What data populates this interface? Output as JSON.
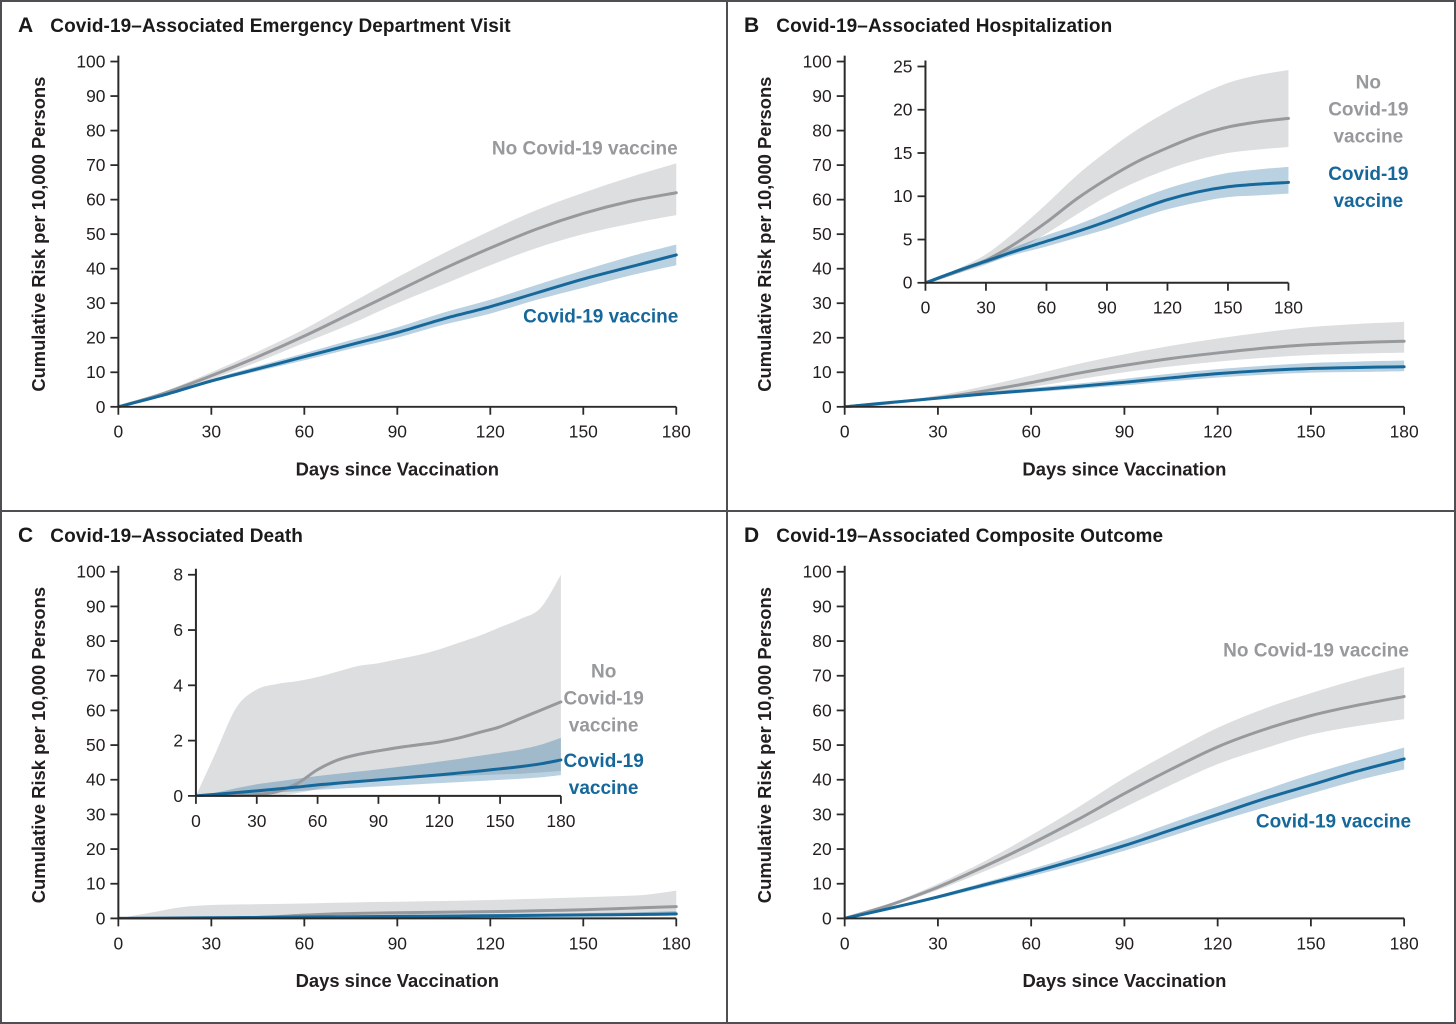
{
  "colors": {
    "vaccine_line": "#16689b",
    "no_vaccine_line": "#97999c",
    "vaccine_band": "#16689b",
    "no_vaccine_band": "#7d8186",
    "axis": "#2b2a28",
    "text": "#231f20"
  },
  "chart_data": [
    {
      "panel": "A",
      "title": "Covid-19–Associated Emergency Department Visit",
      "type": "line",
      "xlabel": "Days since Vaccination",
      "ylabel": "Cumulative Risk per 10,000 Persons",
      "xlim": [
        0,
        180
      ],
      "xticks": [
        0,
        30,
        60,
        90,
        120,
        150,
        180
      ],
      "ylim": [
        0,
        100
      ],
      "yticks": [
        0,
        10,
        20,
        30,
        40,
        50,
        60,
        70,
        80,
        90,
        100
      ],
      "x": [
        0,
        15,
        30,
        45,
        60,
        75,
        90,
        105,
        120,
        135,
        150,
        165,
        180
      ],
      "series": [
        {
          "name": "No Covid-19 vaccine",
          "role": "no_vaccine",
          "values": [
            0,
            4,
            9,
            14.5,
            20.5,
            27,
            33.5,
            40,
            46,
            51.5,
            56,
            59.5,
            62
          ],
          "ci_lower": [
            0,
            3.5,
            8,
            13,
            18.5,
            24,
            30,
            35.5,
            41,
            46,
            50,
            53,
            55.5
          ],
          "ci_upper": [
            0,
            4.5,
            10,
            16,
            22.5,
            30,
            37.5,
            44.5,
            51,
            57,
            62,
            66.5,
            70.5
          ]
        },
        {
          "name": "Covid-19 vaccine",
          "role": "vaccine",
          "values": [
            0,
            3.5,
            7.5,
            11,
            14.5,
            18,
            21.5,
            25.5,
            29,
            33,
            37,
            40.5,
            44
          ],
          "ci_lower": [
            0,
            3.2,
            7,
            10.3,
            13.5,
            16.8,
            20,
            23.8,
            27,
            31,
            34.5,
            38,
            41
          ],
          "ci_upper": [
            0,
            3.8,
            8,
            11.8,
            15.5,
            19.3,
            23,
            27.3,
            31,
            35.3,
            39.5,
            43.5,
            47
          ]
        }
      ],
      "annotations": [
        {
          "lines": [
            "No Covid-19 vaccine"
          ],
          "role": "no_vaccine",
          "px": 0.805,
          "py": 0.289
        },
        {
          "lines": [
            "Covid-19 vaccine"
          ],
          "role": "vaccine",
          "px": 0.827,
          "py": 0.621
        }
      ]
    },
    {
      "panel": "B",
      "title": "Covid-19–Associated Hospitalization",
      "type": "line",
      "xlabel": "Days since Vaccination",
      "ylabel": "Cumulative Risk per 10,000 Persons",
      "xlim": [
        0,
        180
      ],
      "xticks": [
        0,
        30,
        60,
        90,
        120,
        150,
        180
      ],
      "ylim": [
        0,
        100
      ],
      "yticks": [
        0,
        10,
        20,
        30,
        40,
        50,
        60,
        70,
        80,
        90,
        100
      ],
      "inset": {
        "ylim": [
          0,
          25
        ],
        "yticks": [
          0,
          5,
          10,
          15,
          20,
          25
        ],
        "xticks": [
          0,
          30,
          60,
          90,
          120,
          150,
          180
        ]
      },
      "x": [
        0,
        15,
        30,
        45,
        60,
        75,
        90,
        105,
        120,
        135,
        150,
        165,
        180
      ],
      "series": [
        {
          "name": "No Covid-19 vaccine",
          "role": "no_vaccine",
          "values": [
            0,
            1.2,
            2.6,
            4.6,
            7,
            9.7,
            12,
            14,
            15.6,
            17,
            18,
            18.6,
            19
          ],
          "ci_lower": [
            0,
            1,
            2.1,
            3.7,
            5.7,
            7.9,
            10,
            11.7,
            13.1,
            14.2,
            15,
            15.4,
            15.7
          ],
          "ci_upper": [
            0,
            1.5,
            3.3,
            6,
            9.1,
            12.4,
            15.2,
            17.7,
            19.8,
            21.6,
            23.1,
            24,
            24.6
          ]
        },
        {
          "name": "Covid-19 vaccine",
          "role": "vaccine",
          "values": [
            0,
            1.3,
            2.5,
            3.7,
            4.8,
            5.9,
            7.1,
            8.4,
            9.6,
            10.5,
            11.1,
            11.4,
            11.6
          ],
          "ci_lower": [
            0,
            1.1,
            2.2,
            3.3,
            4.2,
            5.2,
            6.2,
            7.4,
            8.5,
            9.3,
            9.9,
            10.1,
            10.3
          ],
          "ci_upper": [
            0,
            1.5,
            2.8,
            4.2,
            5.5,
            6.7,
            8.1,
            9.6,
            10.9,
            11.9,
            12.7,
            13.1,
            13.4
          ]
        }
      ],
      "annotations": [
        {
          "lines": [
            "No",
            "Covid-19",
            "vaccine"
          ],
          "role": "no_vaccine",
          "px": 0.882,
          "py": 0.213
        },
        {
          "lines": [
            "Covid-19",
            "vaccine"
          ],
          "role": "vaccine",
          "px": 0.882,
          "py": 0.367
        }
      ]
    },
    {
      "panel": "C",
      "title": "Covid-19–Associated Death",
      "type": "line",
      "xlabel": "Days since Vaccination",
      "ylabel": "Cumulative Risk per 10,000 Persons",
      "xlim": [
        0,
        180
      ],
      "xticks": [
        0,
        30,
        60,
        90,
        120,
        150,
        180
      ],
      "ylim": [
        0,
        100
      ],
      "yticks": [
        0,
        10,
        20,
        30,
        40,
        50,
        60,
        70,
        80,
        90,
        100
      ],
      "inset": {
        "ylim": [
          0,
          8
        ],
        "yticks": [
          0,
          2,
          4,
          6,
          8
        ],
        "xticks": [
          0,
          30,
          60,
          90,
          120,
          150,
          180
        ]
      },
      "x": [
        0,
        10,
        20,
        30,
        40,
        50,
        60,
        70,
        80,
        90,
        100,
        110,
        120,
        130,
        140,
        150,
        160,
        170,
        180
      ],
      "series": [
        {
          "name": "No Covid-19 vaccine",
          "role": "no_vaccine",
          "values": [
            0,
            0,
            0.02,
            0.05,
            0.15,
            0.45,
            0.95,
            1.3,
            1.5,
            1.63,
            1.75,
            1.85,
            1.95,
            2.1,
            2.3,
            2.5,
            2.8,
            3.1,
            3.4
          ],
          "ci_lower": [
            0,
            0,
            0,
            0,
            0.02,
            0.1,
            0.25,
            0.4,
            0.5,
            0.55,
            0.6,
            0.65,
            0.7,
            0.72,
            0.75,
            0.78,
            0.8,
            0.85,
            0.9
          ],
          "ci_upper": [
            0,
            1.6,
            3.2,
            3.85,
            4.05,
            4.15,
            4.3,
            4.5,
            4.7,
            4.8,
            4.95,
            5.1,
            5.3,
            5.55,
            5.8,
            6.1,
            6.4,
            6.8,
            8
          ]
        },
        {
          "name": "Covid-19 vaccine",
          "role": "vaccine",
          "values": [
            0,
            0.06,
            0.12,
            0.18,
            0.25,
            0.32,
            0.4,
            0.46,
            0.52,
            0.58,
            0.64,
            0.7,
            0.76,
            0.83,
            0.9,
            0.98,
            1.06,
            1.16,
            1.3
          ],
          "ci_lower": [
            0,
            0.02,
            0.05,
            0.09,
            0.13,
            0.17,
            0.22,
            0.26,
            0.3,
            0.34,
            0.38,
            0.42,
            0.46,
            0.5,
            0.54,
            0.58,
            0.62,
            0.67,
            0.75
          ],
          "ci_upper": [
            0,
            0.12,
            0.28,
            0.42,
            0.52,
            0.62,
            0.72,
            0.8,
            0.88,
            0.96,
            1.05,
            1.14,
            1.24,
            1.34,
            1.45,
            1.56,
            1.68,
            1.85,
            2.1
          ]
        }
      ],
      "annotations": [
        {
          "lines": [
            "No",
            "Covid-19",
            "vaccine"
          ],
          "role": "no_vaccine",
          "px": 0.831,
          "py": 0.367
        },
        {
          "lines": [
            "Covid-19",
            "vaccine"
          ],
          "role": "vaccine",
          "px": 0.831,
          "py": 0.515
        }
      ]
    },
    {
      "panel": "D",
      "title": "Covid-19–Associated Composite Outcome",
      "type": "line",
      "xlabel": "Days since Vaccination",
      "ylabel": "Cumulative Risk per 10,000 Persons",
      "xlim": [
        0,
        180
      ],
      "xticks": [
        0,
        30,
        60,
        90,
        120,
        150,
        180
      ],
      "ylim": [
        0,
        100
      ],
      "yticks": [
        0,
        10,
        20,
        30,
        40,
        50,
        60,
        70,
        80,
        90,
        100
      ],
      "x": [
        0,
        15,
        30,
        45,
        60,
        75,
        90,
        105,
        120,
        135,
        150,
        165,
        180
      ],
      "series": [
        {
          "name": "No Covid-19 vaccine",
          "role": "no_vaccine",
          "values": [
            0,
            4,
            9,
            15,
            21.5,
            28.5,
            36,
            43,
            49.5,
            54.5,
            58.5,
            61.5,
            64
          ],
          "ci_lower": [
            0,
            3.6,
            8.2,
            13.6,
            19.3,
            25.5,
            32,
            38.5,
            44.5,
            49,
            53,
            55.5,
            57.5
          ],
          "ci_upper": [
            0,
            4.4,
            10,
            16.5,
            24,
            32,
            40.5,
            48,
            55,
            60.5,
            65,
            69,
            72.5
          ]
        },
        {
          "name": "Covid-19 vaccine",
          "role": "vaccine",
          "values": [
            0,
            3,
            6.2,
            9.7,
            13.2,
            17,
            21,
            25.5,
            30,
            34.5,
            38.5,
            42.5,
            46
          ],
          "ci_lower": [
            0,
            2.8,
            5.7,
            9,
            12.2,
            15.7,
            19.5,
            23.7,
            28,
            32,
            36,
            39.8,
            43
          ],
          "ci_upper": [
            0,
            3.3,
            6.7,
            10.4,
            14.2,
            18.3,
            22.7,
            27.5,
            32.3,
            37,
            41.5,
            45.5,
            49.3
          ]
        }
      ],
      "annotations": [
        {
          "lines": [
            "No Covid-19 vaccine"
          ],
          "role": "no_vaccine",
          "px": 0.81,
          "py": 0.272
        },
        {
          "lines": [
            "Covid-19 vaccine"
          ],
          "role": "vaccine",
          "px": 0.834,
          "py": 0.607
        }
      ]
    }
  ]
}
